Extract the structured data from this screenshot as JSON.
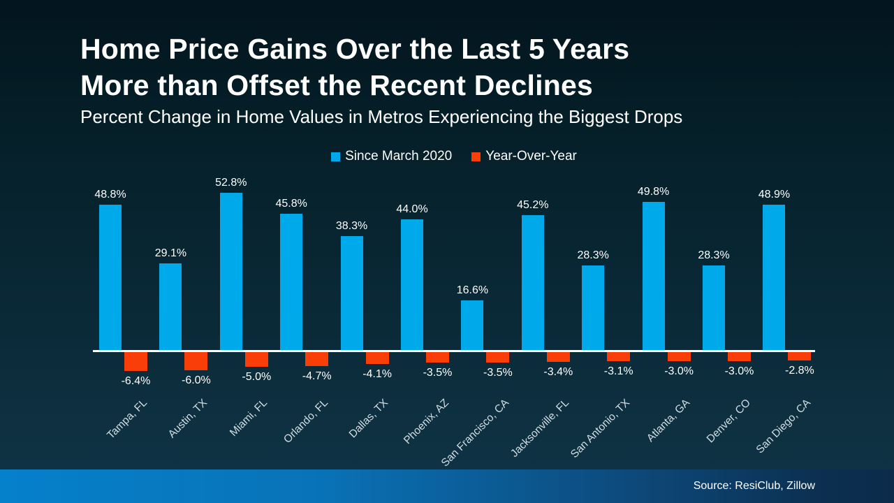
{
  "slide": {
    "title_line1": "Home Price Gains Over the Last 5 Years",
    "title_line2": "More than Offset the Recent Declines",
    "subtitle": "Percent Change in Home Values in Metros Experiencing the Biggest Drops",
    "source": "Source: ResiClub, Zillow"
  },
  "legend": {
    "items": [
      {
        "label": "Since March 2020",
        "color": "#00A9EA"
      },
      {
        "label": "Year-Over-Year",
        "color": "#FA3E08"
      }
    ]
  },
  "chart_data": {
    "type": "bar",
    "grouped": true,
    "title": "Home Price Gains Over the Last 5 Years More than Offset the Recent Declines",
    "subtitle": "Percent Change in Home Values in Metros Experiencing the Biggest Drops",
    "categories": [
      "Tampa, FL",
      "Austin, TX",
      "Miami, FL",
      "Orlando, FL",
      "Dallas, TX",
      "Phoenix, AZ",
      "San Francisco, CA",
      "Jacksonville, FL",
      "San Antonio, TX",
      "Atlanta, GA",
      "Denver, CO",
      "San Diego, CA"
    ],
    "series": [
      {
        "name": "Since March 2020",
        "color": "#00A9EA",
        "values": [
          48.8,
          29.1,
          52.8,
          45.8,
          38.3,
          44.0,
          16.6,
          45.2,
          28.3,
          49.8,
          28.3,
          48.9
        ]
      },
      {
        "name": "Year-Over-Year",
        "color": "#FA3E08",
        "values": [
          -6.4,
          -6.0,
          -5.0,
          -4.7,
          -4.1,
          -3.5,
          -3.5,
          -3.4,
          -3.1,
          -3.0,
          -3.0,
          -2.8
        ]
      }
    ],
    "value_label_suffix": "%",
    "baseline": 0,
    "gridlines": false,
    "y_axis_shown": false,
    "legend_position": "top",
    "source": "Source: ResiClub, Zillow"
  }
}
